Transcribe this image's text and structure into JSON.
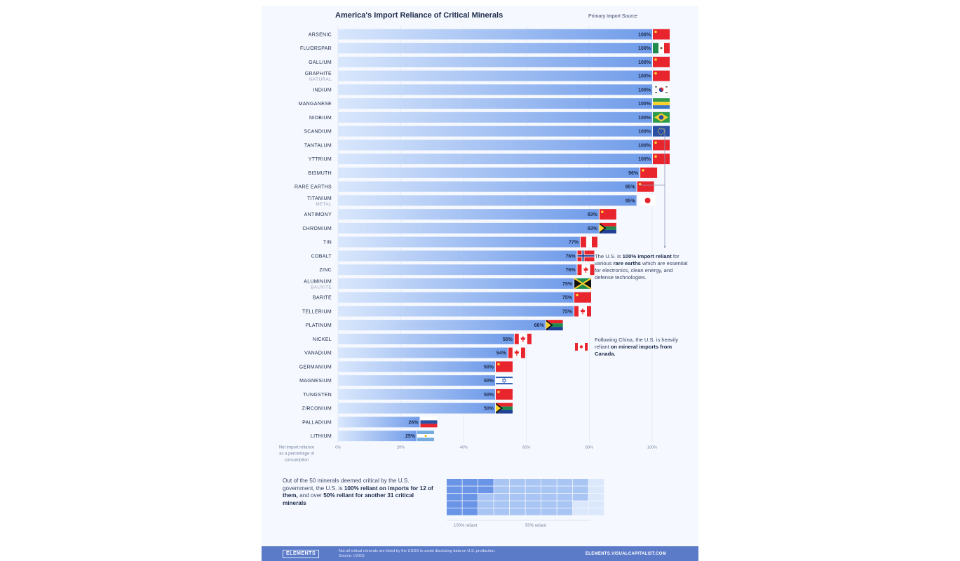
{
  "header": {
    "title": "America's Import Reliance of Critical Minerals",
    "source_label": "Primary Import Source"
  },
  "chart_data": {
    "type": "bar",
    "orientation": "horizontal",
    "title": "America's Import Reliance of Critical Minerals",
    "xlabel": "Net import reliance as a percentage of consumption",
    "xlim": [
      0,
      100
    ],
    "x_ticks": [
      "0%",
      "20%",
      "40%",
      "60%",
      "80%",
      "100%"
    ],
    "rows": [
      {
        "name": "ARSENIC",
        "sub": "",
        "value": 100,
        "label": "100%",
        "source": "china"
      },
      {
        "name": "FLUORSPAR",
        "sub": "",
        "value": 100,
        "label": "100%",
        "source": "mexico"
      },
      {
        "name": "GALLIUM",
        "sub": "",
        "value": 100,
        "label": "100%",
        "source": "china"
      },
      {
        "name": "GRAPHITE",
        "sub": "NATURAL",
        "value": 100,
        "label": "100%",
        "source": "china"
      },
      {
        "name": "INDIUM",
        "sub": "",
        "value": 100,
        "label": "100%",
        "source": "south-korea"
      },
      {
        "name": "MANGANESE",
        "sub": "",
        "value": 100,
        "label": "100%",
        "source": "gabon"
      },
      {
        "name": "NIOBIUM",
        "sub": "",
        "value": 100,
        "label": "100%",
        "source": "brazil"
      },
      {
        "name": "SCANDIUM",
        "sub": "",
        "value": 100,
        "label": "100%",
        "source": "eu"
      },
      {
        "name": "TANTALUM",
        "sub": "",
        "value": 100,
        "label": "100%",
        "source": "china"
      },
      {
        "name": "YTTRIUM",
        "sub": "",
        "value": 100,
        "label": "100%",
        "source": "china"
      },
      {
        "name": "BISMUTH",
        "sub": "",
        "value": 96,
        "label": "96%",
        "source": "china"
      },
      {
        "name": "RARE EARTHS",
        "sub": "",
        "value": 95,
        "label": "95%",
        "source": "china"
      },
      {
        "name": "TITANIUM",
        "sub": "METAL",
        "value": 95,
        "label": "95%",
        "source": "japan"
      },
      {
        "name": "ANTIMONY",
        "sub": "",
        "value": 83,
        "label": "83%",
        "source": "china"
      },
      {
        "name": "CHROMIUM",
        "sub": "",
        "value": 83,
        "label": "83%",
        "source": "south-africa"
      },
      {
        "name": "TIN",
        "sub": "",
        "value": 77,
        "label": "77%",
        "source": "peru"
      },
      {
        "name": "COBALT",
        "sub": "",
        "value": 76,
        "label": "76%",
        "source": "norway"
      },
      {
        "name": "ZINC",
        "sub": "",
        "value": 76,
        "label": "76%",
        "source": "canada"
      },
      {
        "name": "ALUMINUM",
        "sub": "BAUXITE",
        "value": 75,
        "label": "75%",
        "source": "jamaica"
      },
      {
        "name": "BARITE",
        "sub": "",
        "value": 75,
        "label": "75%",
        "source": "china"
      },
      {
        "name": "TELLERIUM",
        "sub": "",
        "value": 75,
        "label": "75%",
        "source": "canada"
      },
      {
        "name": "PLATINUM",
        "sub": "",
        "value": 66,
        "label": "66%",
        "source": "south-africa"
      },
      {
        "name": "NICKEL",
        "sub": "",
        "value": 56,
        "label": "56%",
        "source": "canada"
      },
      {
        "name": "VANADIUM",
        "sub": "",
        "value": 54,
        "label": "54%",
        "source": "canada"
      },
      {
        "name": "GERMANIUM",
        "sub": "",
        "value": 50,
        "label": "50%",
        "source": "china"
      },
      {
        "name": "MAGNESIUM",
        "sub": "",
        "value": 50,
        "label": "50%",
        "source": "israel"
      },
      {
        "name": "TUNGSTEN",
        "sub": "",
        "value": 50,
        "label": "50%",
        "source": "china"
      },
      {
        "name": "ZIRCONIUM",
        "sub": "",
        "value": 50,
        "label": "50%",
        "source": "south-africa"
      },
      {
        "name": "PALLADIUM",
        "sub": "",
        "value": 26,
        "label": "26%",
        "source": "russia"
      },
      {
        "name": "LITHIUM",
        "sub": "",
        "value": 25,
        "label": "25%",
        "source": "argentina"
      }
    ]
  },
  "notes": {
    "rare_earths": {
      "t1": "The U.S. is ",
      "b1": "100% import reliant",
      "t2": " for various ",
      "b2": "rare earths",
      "t3": " which are essential for electronics, clean energy, and defense technologies."
    },
    "canada": {
      "t1": "Following China, the U.S. is heavily reliant ",
      "b1": "on mineral imports from Canada."
    }
  },
  "summary": {
    "t1": "Out of the 50 minerals deemed critical by the U.S. government, the U.S. is ",
    "b1": "100% reliant on imports for 12 of them,",
    "t2": " and over ",
    "b2": "50% reliant for another 31 critical minerals",
    "waffle": {
      "total": 50,
      "full_reliance": 12,
      "over_half": 31,
      "label_full": "100% reliant",
      "label_half": "50% reliant",
      "colors": {
        "full": "#6a94e6",
        "half": "#a9c5f4",
        "rest": "#dbe8fc"
      }
    }
  },
  "footer": {
    "logo": "ELEMENTS",
    "note": "Not all critical minerals are listed by the USGS to avoid disclosing data on U.S. production.",
    "source": "Source: USGS",
    "url": "ELEMENTS.VISUALCAPITALIST.COM"
  },
  "colors": {
    "bar_start": "#d9e7fc",
    "bar_end": "#6f9be9",
    "text": "#1d2b4a",
    "accent": "#5b7bc9"
  }
}
